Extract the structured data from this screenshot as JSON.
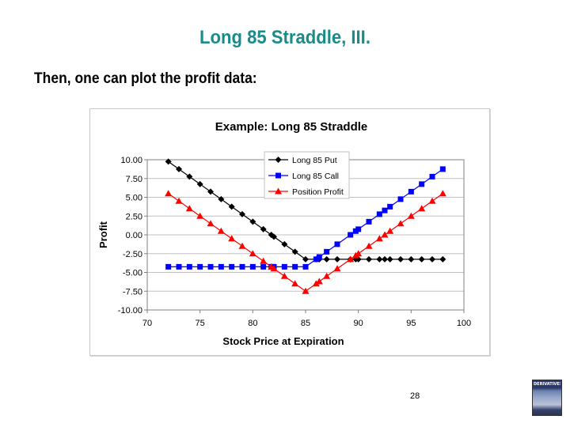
{
  "slide": {
    "title": "Long 85 Straddle, III.",
    "subtitle": "Then, one can plot the profit data:",
    "page_number": "28",
    "logo_text": "DERIVATIVES"
  },
  "colors": {
    "title": "#1a8a8a",
    "put": "#000000",
    "call": "#0000ff",
    "position": "#ff0000",
    "grid": "#c0c0c0"
  },
  "chart_data": {
    "type": "line",
    "title": "Example: Long 85 Straddle",
    "xlabel": "Stock Price at Expiration",
    "ylabel": "Profit",
    "xlim": [
      70,
      100
    ],
    "ylim": [
      -10,
      10
    ],
    "x_ticks": [
      "70",
      "75",
      "80",
      "85",
      "90",
      "95",
      "100"
    ],
    "y_ticks": [
      "10.00",
      "7.50",
      "5.00",
      "2.50",
      "0.00",
      "-2.50",
      "-5.00",
      "-7.50",
      "-10.00"
    ],
    "grid": true,
    "legend_position": "top-center",
    "legend": [
      "Long 85 Put",
      "Long 85 Call",
      "Position Profit"
    ],
    "x": [
      72,
      73,
      74,
      75,
      76,
      77,
      78,
      79,
      80,
      81,
      81.75,
      82,
      83,
      84,
      85,
      86,
      86.3,
      87,
      88,
      89.25,
      89.75,
      90,
      91,
      92,
      92.5,
      93,
      94,
      95,
      96,
      97,
      98
    ],
    "series": [
      {
        "name": "Long 85 Put",
        "marker": "diamond",
        "values": [
          9.75,
          8.75,
          7.75,
          6.75,
          5.75,
          4.75,
          3.75,
          2.75,
          1.75,
          0.75,
          0.0,
          -0.25,
          -1.25,
          -2.25,
          -3.25,
          -3.25,
          -3.25,
          -3.25,
          -3.25,
          -3.25,
          -3.25,
          -3.25,
          -3.25,
          -3.25,
          -3.25,
          -3.25,
          -3.25,
          -3.25,
          -3.25,
          -3.25,
          -3.25
        ]
      },
      {
        "name": "Long 85 Call",
        "marker": "square",
        "values": [
          -4.25,
          -4.25,
          -4.25,
          -4.25,
          -4.25,
          -4.25,
          -4.25,
          -4.25,
          -4.25,
          -4.25,
          -4.25,
          -4.25,
          -4.25,
          -4.25,
          -4.25,
          -3.25,
          -2.95,
          -2.25,
          -1.25,
          0.0,
          0.5,
          0.75,
          1.75,
          2.75,
          3.25,
          3.75,
          4.75,
          5.75,
          6.75,
          7.75,
          8.75
        ]
      },
      {
        "name": "Position Profit",
        "marker": "triangle",
        "values": [
          5.5,
          4.5,
          3.5,
          2.5,
          1.5,
          0.5,
          -0.5,
          -1.5,
          -2.5,
          -3.5,
          -4.25,
          -4.5,
          -5.5,
          -6.5,
          -7.5,
          -6.5,
          -6.2,
          -5.5,
          -4.5,
          -3.25,
          -2.75,
          -2.5,
          -1.5,
          -0.5,
          0.0,
          0.5,
          1.5,
          2.5,
          3.5,
          4.5,
          5.5
        ]
      }
    ]
  }
}
